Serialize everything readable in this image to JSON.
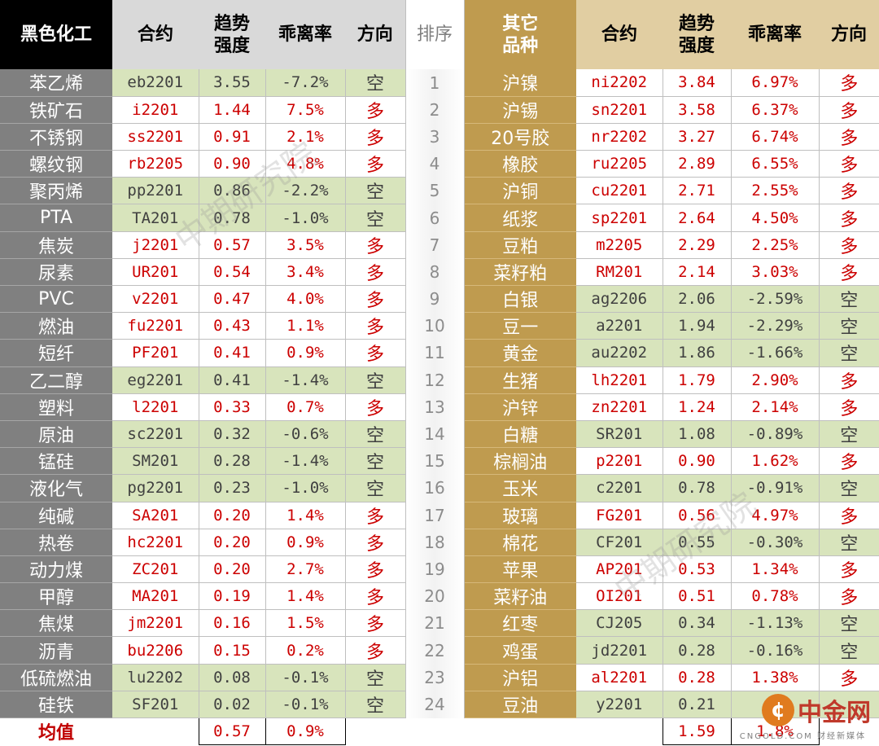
{
  "headers": {
    "left_group": "黑色化工",
    "contract": "合约",
    "trend_line1": "趋势",
    "trend_line2": "强度",
    "deviation": "乖离率",
    "direction": "方向",
    "rank": "排序",
    "right_group_line1": "其它",
    "right_group_line2": "品种"
  },
  "left_rows": [
    {
      "name": "苯乙烯",
      "contract": "eb2201",
      "trend": "3.55",
      "dev": "-7.2%",
      "dir": "空"
    },
    {
      "name": "铁矿石",
      "contract": "i2201",
      "trend": "1.44",
      "dev": "7.5%",
      "dir": "多"
    },
    {
      "name": "不锈钢",
      "contract": "ss2201",
      "trend": "0.91",
      "dev": "2.1%",
      "dir": "多"
    },
    {
      "name": "螺纹钢",
      "contract": "rb2205",
      "trend": "0.90",
      "dev": "4.8%",
      "dir": "多"
    },
    {
      "name": "聚丙烯",
      "contract": "pp2201",
      "trend": "0.86",
      "dev": "-2.2%",
      "dir": "空"
    },
    {
      "name": "PTA",
      "contract": "TA201",
      "trend": "0.78",
      "dev": "-1.0%",
      "dir": "空"
    },
    {
      "name": "焦炭",
      "contract": "j2201",
      "trend": "0.57",
      "dev": "3.5%",
      "dir": "多"
    },
    {
      "name": "尿素",
      "contract": "UR201",
      "trend": "0.54",
      "dev": "3.4%",
      "dir": "多"
    },
    {
      "name": "PVC",
      "contract": "v2201",
      "trend": "0.47",
      "dev": "4.0%",
      "dir": "多"
    },
    {
      "name": "燃油",
      "contract": "fu2201",
      "trend": "0.43",
      "dev": "1.1%",
      "dir": "多"
    },
    {
      "name": "短纤",
      "contract": "PF201",
      "trend": "0.41",
      "dev": "0.9%",
      "dir": "多"
    },
    {
      "name": "乙二醇",
      "contract": "eg2201",
      "trend": "0.41",
      "dev": "-1.4%",
      "dir": "空"
    },
    {
      "name": "塑料",
      "contract": "l2201",
      "trend": "0.33",
      "dev": "0.7%",
      "dir": "多"
    },
    {
      "name": "原油",
      "contract": "sc2201",
      "trend": "0.32",
      "dev": "-0.6%",
      "dir": "空"
    },
    {
      "name": "锰硅",
      "contract": "SM201",
      "trend": "0.28",
      "dev": "-1.4%",
      "dir": "空"
    },
    {
      "name": "液化气",
      "contract": "pg2201",
      "trend": "0.23",
      "dev": "-1.0%",
      "dir": "空"
    },
    {
      "name": "纯碱",
      "contract": "SA201",
      "trend": "0.20",
      "dev": "1.4%",
      "dir": "多"
    },
    {
      "name": "热卷",
      "contract": "hc2201",
      "trend": "0.20",
      "dev": "0.9%",
      "dir": "多"
    },
    {
      "name": "动力煤",
      "contract": "ZC201",
      "trend": "0.20",
      "dev": "2.7%",
      "dir": "多"
    },
    {
      "name": "甲醇",
      "contract": "MA201",
      "trend": "0.19",
      "dev": "1.4%",
      "dir": "多"
    },
    {
      "name": "焦煤",
      "contract": "jm2201",
      "trend": "0.16",
      "dev": "1.5%",
      "dir": "多"
    },
    {
      "name": "沥青",
      "contract": "bu2206",
      "trend": "0.15",
      "dev": "0.2%",
      "dir": "多"
    },
    {
      "name": "低硫燃油",
      "contract": "lu2202",
      "trend": "0.08",
      "dev": "-0.1%",
      "dir": "空"
    },
    {
      "name": "硅铁",
      "contract": "SF201",
      "trend": "0.02",
      "dev": "-0.1%",
      "dir": "空"
    }
  ],
  "right_rows": [
    {
      "rank": "1",
      "name": "沪镍",
      "contract": "ni2202",
      "trend": "3.84",
      "dev": "6.97%",
      "dir": "多"
    },
    {
      "rank": "2",
      "name": "沪锡",
      "contract": "sn2201",
      "trend": "3.58",
      "dev": "6.37%",
      "dir": "多"
    },
    {
      "rank": "3",
      "name": "20号胶",
      "contract": "nr2202",
      "trend": "3.27",
      "dev": "6.74%",
      "dir": "多"
    },
    {
      "rank": "4",
      "name": "橡胶",
      "contract": "ru2205",
      "trend": "2.89",
      "dev": "6.55%",
      "dir": "多"
    },
    {
      "rank": "5",
      "name": "沪铜",
      "contract": "cu2201",
      "trend": "2.71",
      "dev": "2.55%",
      "dir": "多"
    },
    {
      "rank": "6",
      "name": "纸浆",
      "contract": "sp2201",
      "trend": "2.64",
      "dev": "4.50%",
      "dir": "多"
    },
    {
      "rank": "7",
      "name": "豆粕",
      "contract": "m2205",
      "trend": "2.29",
      "dev": "2.25%",
      "dir": "多"
    },
    {
      "rank": "8",
      "name": "菜籽粕",
      "contract": "RM201",
      "trend": "2.14",
      "dev": "3.03%",
      "dir": "多"
    },
    {
      "rank": "9",
      "name": "白银",
      "contract": "ag2206",
      "trend": "2.06",
      "dev": "-2.59%",
      "dir": "空"
    },
    {
      "rank": "10",
      "name": "豆一",
      "contract": "a2201",
      "trend": "1.94",
      "dev": "-2.29%",
      "dir": "空"
    },
    {
      "rank": "11",
      "name": "黄金",
      "contract": "au2202",
      "trend": "1.86",
      "dev": "-1.66%",
      "dir": "空"
    },
    {
      "rank": "12",
      "name": "生猪",
      "contract": "lh2201",
      "trend": "1.79",
      "dev": "2.90%",
      "dir": "多"
    },
    {
      "rank": "13",
      "name": "沪锌",
      "contract": "zn2201",
      "trend": "1.24",
      "dev": "2.14%",
      "dir": "多"
    },
    {
      "rank": "14",
      "name": "白糖",
      "contract": "SR201",
      "trend": "1.08",
      "dev": "-0.89%",
      "dir": "空"
    },
    {
      "rank": "15",
      "name": "棕榈油",
      "contract": "p2201",
      "trend": "0.90",
      "dev": "1.62%",
      "dir": "多"
    },
    {
      "rank": "16",
      "name": "玉米",
      "contract": "c2201",
      "trend": "0.78",
      "dev": "-0.91%",
      "dir": "空"
    },
    {
      "rank": "17",
      "name": "玻璃",
      "contract": "FG201",
      "trend": "0.56",
      "dev": "4.97%",
      "dir": "多"
    },
    {
      "rank": "18",
      "name": "棉花",
      "contract": "CF201",
      "trend": "0.55",
      "dev": "-0.30%",
      "dir": "空"
    },
    {
      "rank": "19",
      "name": "苹果",
      "contract": "AP201",
      "trend": "0.53",
      "dev": "1.34%",
      "dir": "多"
    },
    {
      "rank": "20",
      "name": "菜籽油",
      "contract": "OI201",
      "trend": "0.51",
      "dev": "0.78%",
      "dir": "多"
    },
    {
      "rank": "21",
      "name": "红枣",
      "contract": "CJ205",
      "trend": "0.34",
      "dev": "-1.13%",
      "dir": "空"
    },
    {
      "rank": "22",
      "name": "鸡蛋",
      "contract": "jd2201",
      "trend": "0.28",
      "dev": "-0.16%",
      "dir": "空"
    },
    {
      "rank": "23",
      "name": "沪铝",
      "contract": "al2201",
      "trend": "0.28",
      "dev": "1.38%",
      "dir": "多"
    },
    {
      "rank": "24",
      "name": "豆油",
      "contract": "y2201",
      "trend": "0.21",
      "dev": "",
      "dir": ""
    }
  ],
  "average": {
    "label": "均值",
    "left_trend": "0.57",
    "left_dev": "0.9%",
    "right_trend": "1.59",
    "right_dev": "1.8%"
  },
  "watermark": "中期研究院",
  "logo": {
    "mark": "¢",
    "text": "中金网",
    "sub": "CNGOLD.COM 财经新媒体"
  }
}
